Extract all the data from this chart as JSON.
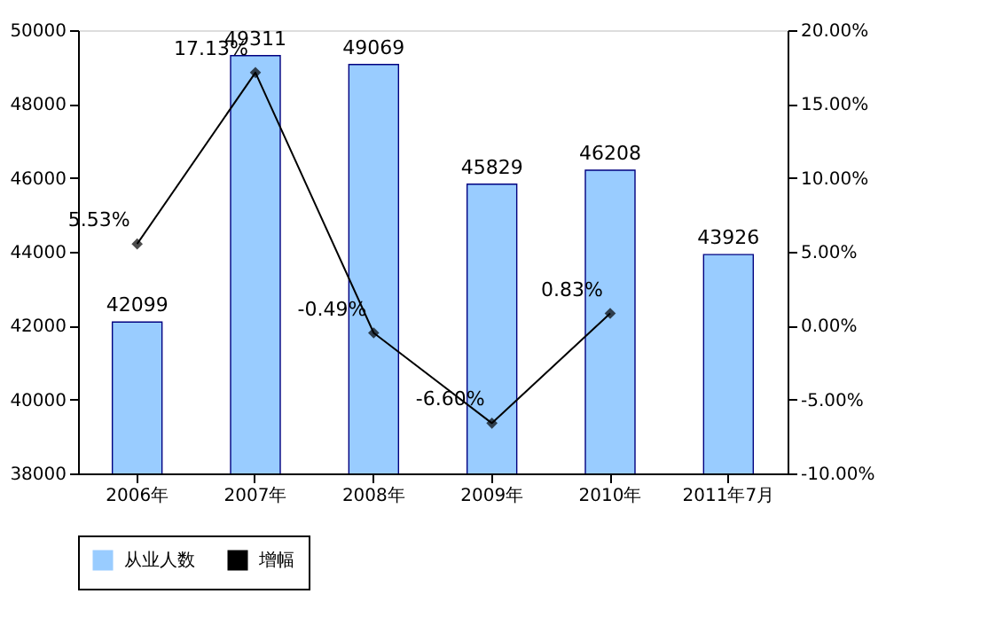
{
  "chart_data": {
    "type": "bar",
    "categories": [
      "2006年",
      "2007年",
      "2008年",
      "2009年",
      "2010年",
      "2011年7月"
    ],
    "series": [
      {
        "name": "从业人数",
        "color": "#99ccff",
        "values": [
          42099,
          49311,
          49069,
          45829,
          46208,
          43926
        ]
      },
      {
        "name": "增幅",
        "type": "line",
        "axis": "y2",
        "color": "#000000",
        "marker": "diamond",
        "values": [
          5.53,
          17.13,
          -0.49,
          -6.6,
          0.83,
          null
        ],
        "value_labels": [
          "5.53%",
          "17.13%",
          "-0.49%",
          "-6.60%",
          "0.83%",
          null
        ]
      }
    ],
    "data_labels": true,
    "ylim": [
      38000,
      50000
    ],
    "yticks": [
      {
        "value": 38000,
        "label": "38000"
      },
      {
        "value": 40000,
        "label": "40000"
      },
      {
        "value": 42000,
        "label": "42000"
      },
      {
        "value": 44000,
        "label": "44000"
      },
      {
        "value": 46000,
        "label": "46000"
      },
      {
        "value": 48000,
        "label": "48000"
      },
      {
        "value": 50000,
        "label": "50000"
      }
    ],
    "y2lim": [
      -10,
      20
    ],
    "y2ticks": [
      {
        "value": -10,
        "label": "-10.00%"
      },
      {
        "value": -5,
        "label": "-5.00%"
      },
      {
        "value": 0,
        "label": "0.00%"
      },
      {
        "value": 5,
        "label": "5.00%"
      },
      {
        "value": 10,
        "label": "10.00%"
      },
      {
        "value": 15,
        "label": "15.00%"
      },
      {
        "value": 20,
        "label": "20.00%"
      }
    ],
    "grid": false,
    "legend": "bottom"
  }
}
